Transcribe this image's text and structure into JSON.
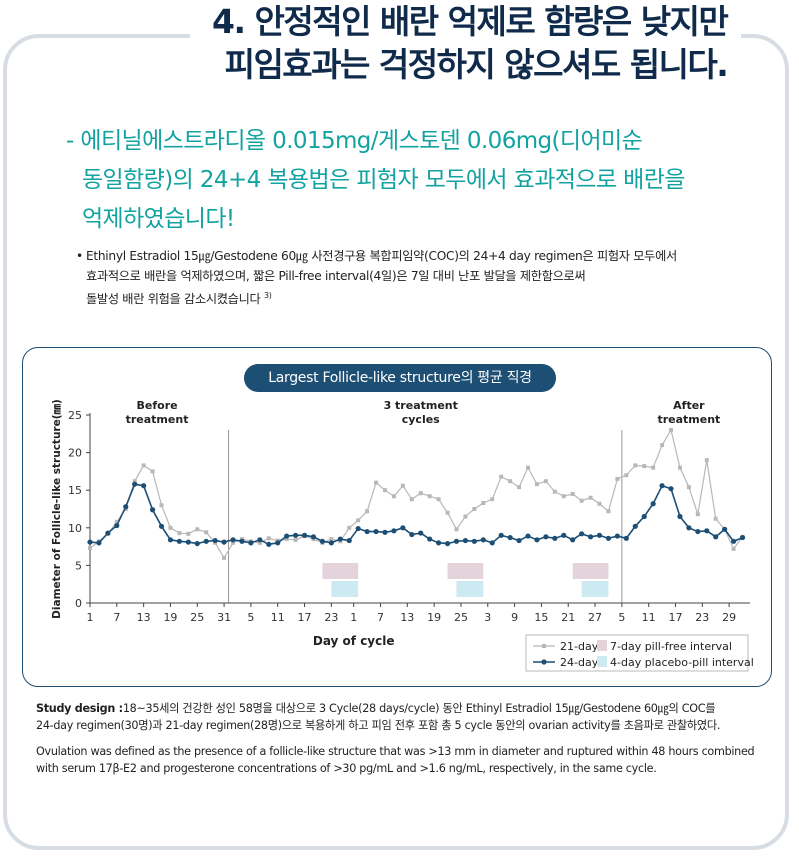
{
  "header": {
    "title_line1": "4. 안정적인 배란 억제로 함량은 낮지만",
    "title_line2": "피임효과는 걱정하지 않으셔도 됩니다."
  },
  "subtitle": {
    "line1": "- 에티닐에스트라디올 0.015mg/게스토덴 0.06mg(디어미순",
    "line2": "동일함량)의 24+4 복용법은 피험자 모두에서 효과적으로 배란을",
    "line3": "억제하였습니다!"
  },
  "note": {
    "bullet": "•",
    "line1": "Ethinyl Estradiol 15㎍/Gestodene 60㎍ 사전경구용 복합피임약(COC)의 24+4 day regimen은 피험자 모두에서",
    "line2": "효과적으로 배란을 억제하였으며, 짧은 Pill-free interval(4일)은 7일 대비 난포 발달을 제한함으로써",
    "line3": "돌발성 배란 위험을 감소시켰습니다",
    "ref": "3)"
  },
  "chart_pill": "Largest Follicle-like structure의 평균 직경",
  "study": {
    "label": "Study design :",
    "line1": "18~35세의 건강한 성인 58명을 대상으로 3 Cycle(28 days/cycle) 동안 Ethinyl Estradiol 15㎍/Gestodene 60㎍의 COC를",
    "line2": "24-day regimen(30명)과 21-day regimen(28명)으로 복용하게 하고 피임 전후 포함 총 5 cycle 동안의  ovarian activity를 초음파로 관찰하였다.",
    "ov1": "Ovulation was defined as the presence of a follicle-like structure that was >13 mm in diameter and ruptured within 48 hours combined",
    "ov2": "with serum 17β-E2 and progesterone concentrations of >30 pg/mL and >1.6 ng/mL, respectively, in the same cycle."
  },
  "chart_data": {
    "type": "line",
    "ylabel": "Diameter of Follicle-like structure(㎜)",
    "xlabel": "Day of cycle",
    "ylim": [
      0,
      25
    ],
    "yticks": [
      0,
      5,
      10,
      15,
      20,
      25
    ],
    "xlim": [
      0,
      154
    ],
    "xtick_labels": [
      "1",
      "7",
      "13",
      "19",
      "25",
      "31",
      "5",
      "11",
      "17",
      "23",
      "1",
      "7",
      "13",
      "19",
      "25",
      "3",
      "9",
      "15",
      "21",
      "27",
      "5",
      "11",
      "17",
      "23",
      "29"
    ],
    "xtick_day": [
      1,
      7,
      13,
      19,
      25,
      31,
      37,
      43,
      49,
      55,
      60,
      66,
      72,
      78,
      84,
      90,
      96,
      102,
      108,
      114,
      120,
      126,
      132,
      138,
      144
    ],
    "phase_dividers": [
      32,
      120
    ],
    "phase_labels": [
      {
        "line1": "Before",
        "line2": "treatment",
        "day": 16
      },
      {
        "line1": "3 treatment",
        "line2": "cycles",
        "day": 75
      },
      {
        "line1": "After",
        "line2": "treatment",
        "day": 135
      }
    ],
    "colors": {
      "series_21": "#b8b8b8",
      "series_24": "#1d4e74",
      "pillfree": "#e5d3db",
      "placebo": "#cdeaf3",
      "axis": "#444444"
    },
    "intervals": [
      {
        "type": "pillfree",
        "start": 53,
        "end": 61
      },
      {
        "type": "placebo",
        "start": 55,
        "end": 61
      },
      {
        "type": "pillfree",
        "start": 81,
        "end": 89
      },
      {
        "type": "placebo",
        "start": 83,
        "end": 89
      },
      {
        "type": "pillfree",
        "start": 109,
        "end": 117
      },
      {
        "type": "placebo",
        "start": 111,
        "end": 117
      }
    ],
    "series": [
      {
        "name": "21-day",
        "x": [
          1,
          3,
          5,
          7,
          9,
          11,
          13,
          15,
          17,
          19,
          21,
          23,
          25,
          27,
          29,
          31,
          33,
          35,
          37,
          39,
          41,
          43,
          45,
          47,
          49,
          51,
          53,
          55,
          57,
          59,
          61,
          63,
          65,
          67,
          69,
          71,
          73,
          75,
          77,
          79,
          81,
          83,
          85,
          87,
          89,
          91,
          93,
          95,
          97,
          99,
          101,
          103,
          105,
          107,
          109,
          111,
          113,
          115,
          117,
          119,
          121,
          123,
          125,
          127,
          129,
          131,
          133,
          135,
          137,
          139,
          141,
          143,
          145,
          147
        ],
        "values": [
          7.3,
          8.2,
          9.2,
          10.8,
          12.5,
          16.2,
          18.3,
          17.5,
          13,
          10,
          9.3,
          9.2,
          9.8,
          9.4,
          8,
          6,
          8,
          8.5,
          8.2,
          8,
          8.6,
          8.3,
          8.5,
          8.4,
          8.9,
          8.5,
          8,
          8.5,
          8.2,
          10,
          11,
          12.2,
          16,
          15,
          14.2,
          15.6,
          13.8,
          14.6,
          14.2,
          13.8,
          12,
          9.8,
          11.5,
          12.5,
          13.3,
          13.8,
          16.8,
          16.2,
          15.4,
          18,
          15.8,
          16.2,
          14.8,
          14.2,
          14.5,
          13.6,
          14,
          13.2,
          12.2,
          16.5,
          17,
          18.3,
          18.2,
          18,
          21,
          23,
          18,
          15.4,
          11.8,
          19,
          11.2,
          9.8,
          7.2,
          8.8
        ]
      },
      {
        "name": "24-day",
        "x": [
          1,
          3,
          5,
          7,
          9,
          11,
          13,
          15,
          17,
          19,
          21,
          23,
          25,
          27,
          29,
          31,
          33,
          35,
          37,
          39,
          41,
          43,
          45,
          47,
          49,
          51,
          53,
          55,
          57,
          59,
          61,
          63,
          65,
          67,
          69,
          71,
          73,
          75,
          77,
          79,
          81,
          83,
          85,
          87,
          89,
          91,
          93,
          95,
          97,
          99,
          101,
          103,
          105,
          107,
          109,
          111,
          113,
          115,
          117,
          119,
          121,
          123,
          125,
          127,
          129,
          131,
          133,
          135,
          137,
          139,
          141,
          143,
          145,
          147
        ],
        "values": [
          8.1,
          8,
          9.3,
          10.3,
          12.8,
          15.8,
          15.6,
          12.4,
          10.2,
          8.4,
          8.2,
          8.1,
          7.9,
          8.2,
          8.3,
          8.1,
          8.4,
          8.2,
          8,
          8.4,
          7.8,
          8,
          8.9,
          9,
          9,
          8.8,
          8.2,
          8,
          8.5,
          8.3,
          9.9,
          9.5,
          9.5,
          9.4,
          9.6,
          10,
          9.1,
          9.3,
          8.5,
          8,
          7.9,
          8.2,
          8.3,
          8.2,
          8.4,
          8,
          9,
          8.7,
          8.3,
          8.9,
          8.4,
          8.8,
          8.6,
          9,
          8.4,
          9.2,
          8.8,
          9,
          8.6,
          8.9,
          8.6,
          10.2,
          11.5,
          13.2,
          15.6,
          15.2,
          11.5,
          10,
          9.5,
          9.6,
          8.8,
          9.8,
          8.2,
          8.7
        ]
      }
    ],
    "legend": [
      {
        "key": "series_21",
        "label": "21-day"
      },
      {
        "key": "series_24",
        "label": "24-day"
      },
      {
        "key": "pillfree",
        "label": "7-day pill-free interval"
      },
      {
        "key": "placebo",
        "label": "4-day placebo-pill interval"
      }
    ]
  }
}
